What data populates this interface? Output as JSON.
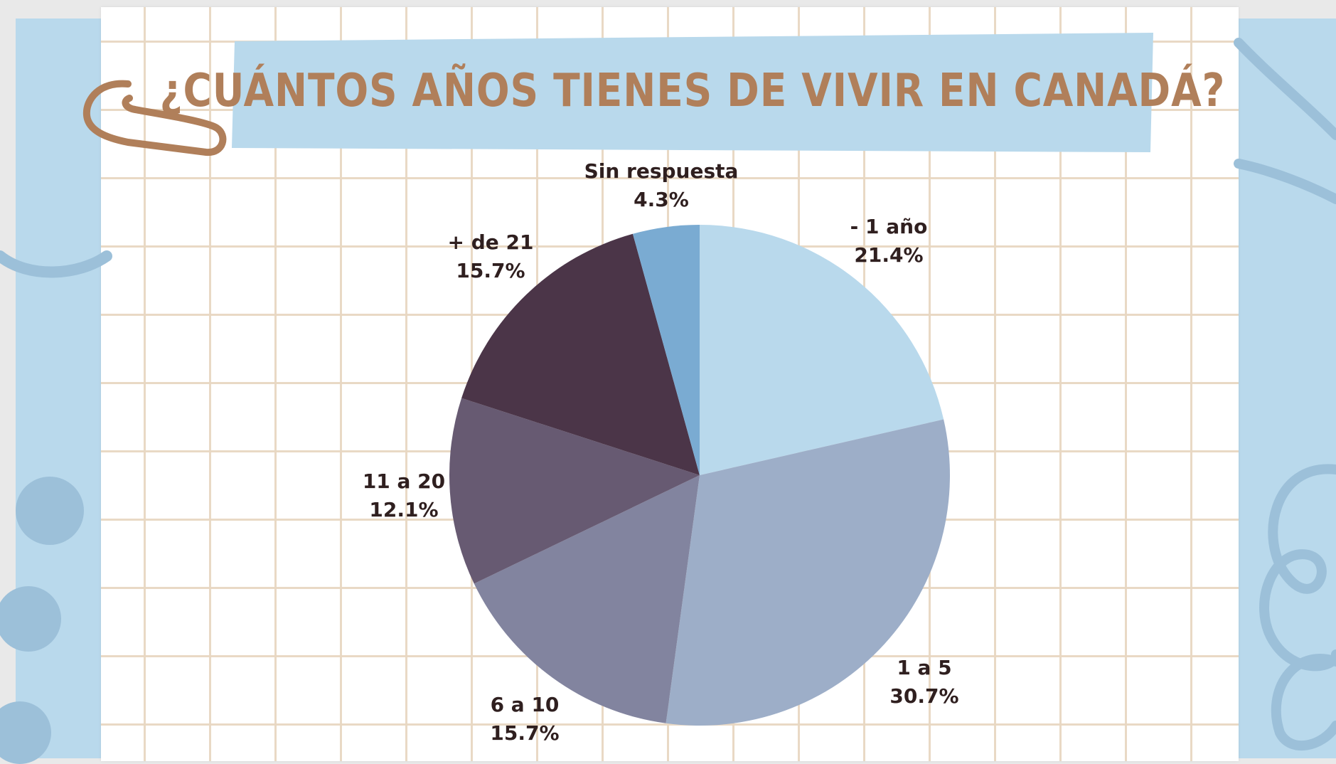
{
  "title": "¿CUÁNTOS AÑOS TIENES DE VIVIR EN CANADÁ?",
  "colors": {
    "banner": "#b9d9ec",
    "title": "#b07f5a",
    "paperclip": "#b07f5a",
    "label": "#2f1f1f",
    "accent_blue": "#9cc0d9"
  },
  "icons": {
    "paperclip": "paperclip-icon"
  },
  "chart_data": {
    "type": "pie",
    "title": "¿CUÁNTOS AÑOS TIENES DE VIVIR EN CANADÁ?",
    "slices": [
      {
        "label": "- 1 año",
        "value": 21.4,
        "value_label": "21.4%",
        "color": "#b9d9ec"
      },
      {
        "label": "1 a 5",
        "value": 30.7,
        "value_label": "30.7%",
        "color": "#9daec8"
      },
      {
        "label": "6 a 10",
        "value": 15.7,
        "value_label": "15.7%",
        "color": "#82849f"
      },
      {
        "label": "11 a 20",
        "value": 12.1,
        "value_label": "12.1%",
        "color": "#675a72"
      },
      {
        "label": "+ de 21",
        "value": 15.7,
        "value_label": "15.7%",
        "color": "#4b3548"
      },
      {
        "label": "Sin respuesta",
        "value": 4.3,
        "value_label": "4.3%",
        "color": "#7aabd2"
      }
    ]
  }
}
